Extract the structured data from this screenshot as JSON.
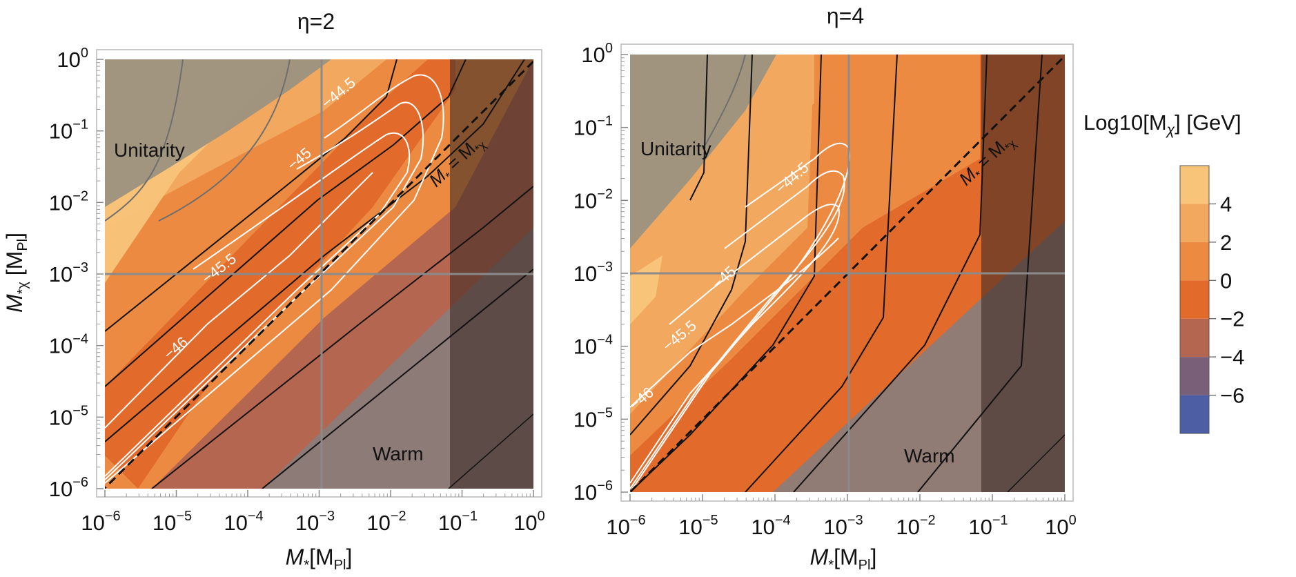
{
  "chart_data": [
    {
      "type": "contour",
      "title": "η=2",
      "eta": 2,
      "xlabel": "M*[MPl]",
      "ylabel": "M*χ [MPl]",
      "x_scale": "log",
      "y_scale": "log",
      "xlim": [
        1e-06,
        1
      ],
      "ylim": [
        1e-06,
        1
      ],
      "x_ticks": [
        -6,
        -5,
        -4,
        -3,
        -2,
        -1,
        0
      ],
      "y_ticks": [
        -6,
        -5,
        -4,
        -3,
        -2,
        -1,
        0
      ],
      "reference_lines": {
        "x": 0.001,
        "y": 0.001
      },
      "diagonal_label": "M* = M*χ",
      "regions": [
        {
          "name": "Unitarity",
          "label": "Unitarity"
        },
        {
          "name": "Warm",
          "label": "Warm"
        }
      ],
      "white_contour_labels": [
        "−44.5",
        "−45",
        "−45.5",
        "−46"
      ]
    },
    {
      "type": "contour",
      "title": "η=4",
      "eta": 4,
      "xlabel": "M*[MPl]",
      "ylabel": "",
      "x_scale": "log",
      "y_scale": "log",
      "xlim": [
        1e-06,
        1
      ],
      "ylim": [
        1e-06,
        1
      ],
      "x_ticks": [
        -6,
        -5,
        -4,
        -3,
        -2,
        -1,
        0
      ],
      "y_ticks": [
        -6,
        -5,
        -4,
        -3,
        -2,
        -1,
        0
      ],
      "reference_lines": {
        "x": 0.001,
        "y": 0.001
      },
      "diagonal_label": "M* = M*χ",
      "regions": [
        {
          "name": "Unitarity",
          "label": "Unitarity"
        },
        {
          "name": "Warm",
          "label": "Warm"
        }
      ],
      "white_contour_labels": [
        "−44.5",
        "−45",
        "−45.5",
        "−46"
      ]
    }
  ],
  "colorbar": {
    "title": "Log10[Mχ] [GeV]",
    "ticks": [
      "4",
      "2",
      "0",
      "−2",
      "−4",
      "−6"
    ],
    "levels": [
      {
        "range": [
          4,
          6
        ],
        "color": "#f8c47a"
      },
      {
        "range": [
          2,
          4
        ],
        "color": "#f2a85f"
      },
      {
        "range": [
          0,
          2
        ],
        "color": "#ec8a42"
      },
      {
        "range": [
          -2,
          0
        ],
        "color": "#e26a2a"
      },
      {
        "range": [
          -4,
          -2
        ],
        "color": "#b56650"
      },
      {
        "range": [
          -6,
          -4
        ],
        "color": "#7a5f78"
      },
      {
        "range": [
          -8,
          -6
        ],
        "color": "#4d5ea4"
      }
    ]
  },
  "labels": {
    "title_eta2": "η=2",
    "title_eta4": "η=4",
    "unitarity": "Unitarity",
    "warm": "Warm",
    "xlabel_main": "M",
    "xlabel_sub": "*",
    "xlabel_bracket": "[M",
    "xlabel_pl": "Pl",
    "ylabel_main": "M",
    "ylabel_sub": "*χ",
    "ylabel_bracket": " [M",
    "ylabel_pl": "Pl",
    "diag_main": "M",
    "diag_sub": "*",
    "diag_eq": " = M",
    "diag_sub2": "*χ",
    "cb_title_a": "Log10[M",
    "cb_title_sub": "χ",
    "cb_title_b": "] [GeV]",
    "c445": "−44.5",
    "c45": "−45",
    "c455": "−45.5",
    "c46": "−46"
  }
}
